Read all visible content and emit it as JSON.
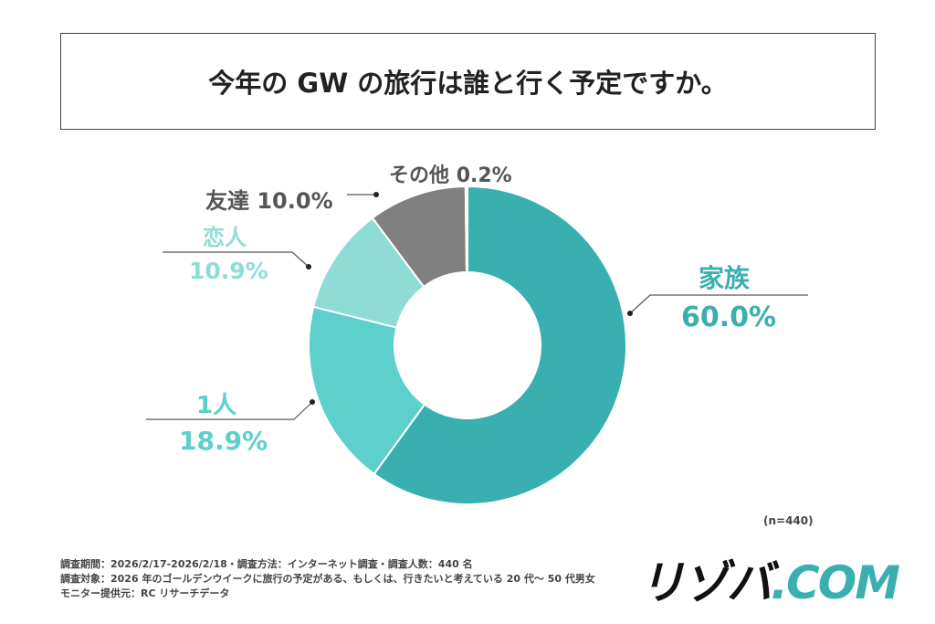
{
  "title": "今年の GW の旅行は誰と行く予定ですか。",
  "chart_data": {
    "type": "pie",
    "donut": true,
    "title": "今年の GW の旅行は誰と行く予定ですか。",
    "slices": [
      {
        "label": "家族",
        "value": 60.0,
        "display": "60.0%",
        "color": "#3aafaf"
      },
      {
        "label": "1人",
        "value": 18.9,
        "display": "18.9%",
        "color": "#5dd0cc"
      },
      {
        "label": "恋人",
        "value": 10.9,
        "display": "10.9%",
        "color": "#8fdcd6"
      },
      {
        "label": "友達",
        "value": 10.0,
        "display": "10.0%",
        "color": "#808080"
      },
      {
        "label": "その他",
        "value": 0.2,
        "display": "0.2%",
        "color": "#b0b0b0"
      }
    ],
    "sample": "(n=440)"
  },
  "notes": [
    "調査期間：2026/2/17-2026/2/18・調査方法：インターネット調査・調査人数：440 名",
    "調査対象：2026 年のゴールデンウイークに旅行の予定がある、もしくは、行きたいと考えている 20 代～ 50 代男女",
    "モニター提供元：RC リサーチデータ"
  ],
  "logo": {
    "main": "リゾバ",
    "suffix": ".COM"
  }
}
